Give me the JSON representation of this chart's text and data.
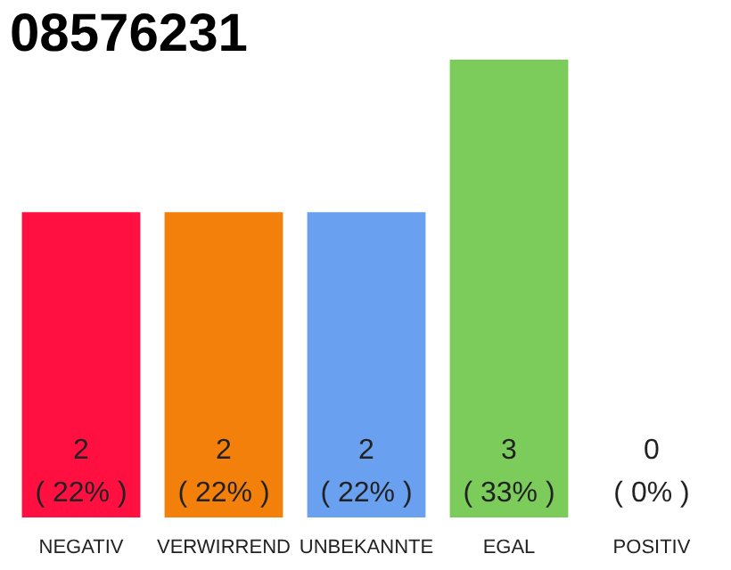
{
  "chart_data": {
    "type": "bar",
    "title": "08576231",
    "categories": [
      "NEGATIV",
      "VERWIRREND",
      "UNBEKANNTE",
      "EGAL",
      "POSITIV"
    ],
    "values": [
      2,
      2,
      2,
      3,
      0
    ],
    "colors": [
      "#ff1040",
      "#f4800c",
      "#6aa0f0",
      "#7ccc5c",
      "#efefef"
    ],
    "value_labels": [
      "2\n( 22% )",
      "2\n( 22% )",
      "2\n( 22% )",
      "3\n( 33% )",
      "0\n( 0% )"
    ],
    "grid": false
  }
}
